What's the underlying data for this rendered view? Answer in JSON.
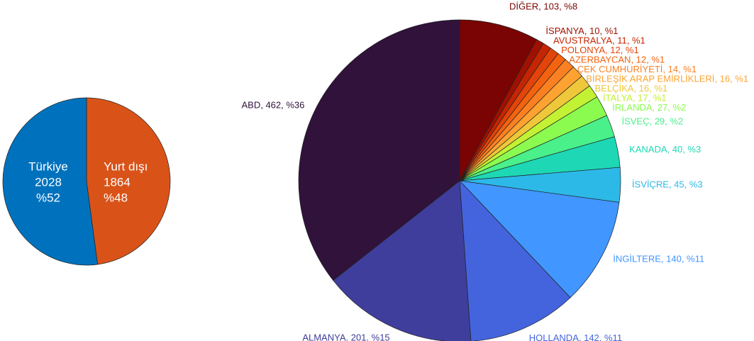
{
  "chart_data": [
    {
      "type": "pie",
      "categories": [
        "Yurt dışı",
        "Türkiye"
      ],
      "values": [
        1864,
        2028
      ],
      "percent_labels": [
        "%48",
        "%52"
      ],
      "colors": [
        "#d95319",
        "#0072bd"
      ]
    },
    {
      "type": "pie",
      "values": [
        103,
        10,
        11,
        12,
        12,
        14,
        16,
        16,
        17,
        27,
        29,
        40,
        45,
        140,
        142,
        201,
        462
      ],
      "value_labels": [
        "DİĞER, 103, %8",
        "İSPANYA, 10, %1",
        "AVUSTRALYA, 11, %1",
        "POLONYA, 12, %1",
        "AZERBAYCAN, 12, %1",
        "ÇEK CUMHURİYETİ, 14, %1",
        "BİRLEŞİK ARAP EMİRLİKLERİ, 16, %1",
        "BELÇİKA, 16, %1",
        "İTALYA, 17, %1",
        "İRLANDA, 27, %2",
        "İSVEÇ, 29, %2",
        "KANADA, 40, %3",
        "İSVİÇRE, 45, %3",
        "İNGİLTERE, 140, %11",
        "HOLLANDA, 142, %11",
        "ALMANYA. 201. %15",
        "ABD, 462, %36"
      ],
      "colors": [
        "#7a0403",
        "#a01101",
        "#c42503",
        "#e2440a",
        "#f3630f",
        "#fb8022",
        "#fea331",
        "#eec83a",
        "#c3f134",
        "#8bfb4f",
        "#4af08a",
        "#1ed8b5",
        "#2cb9e8",
        "#4196ff",
        "#4464de",
        "#3f3e9c",
        "#30123b"
      ]
    }
  ]
}
